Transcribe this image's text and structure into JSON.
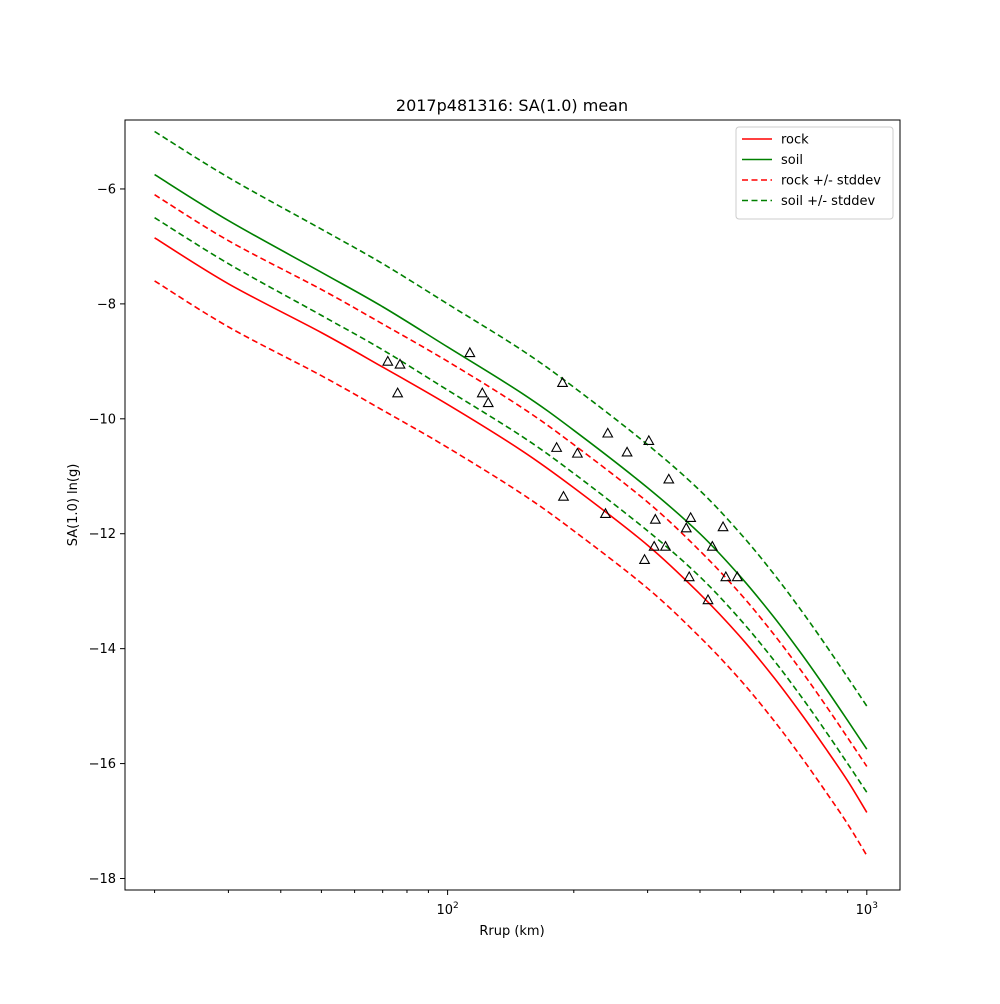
{
  "chart_data": {
    "type": "line",
    "title": "2017p481316: SA(1.0) mean",
    "xlabel": "Rrup (km)",
    "ylabel": "SA(1.0) ln(g)",
    "xscale": "log",
    "xlim": [
      17,
      1200
    ],
    "ylim": [
      -18.2,
      -4.8
    ],
    "x_major_ticks": [
      100,
      1000
    ],
    "x_major_tick_labels": [
      "10",
      "10"
    ],
    "x_major_tick_exponents": [
      "2",
      "3"
    ],
    "y_ticks": [
      -18,
      -16,
      -14,
      -12,
      -10,
      -8,
      -6
    ],
    "y_tick_labels": [
      "−18",
      "−16",
      "−14",
      "−12",
      "−10",
      "−8",
      "−6"
    ],
    "grid": false,
    "legend_position": "top-right",
    "x": [
      20,
      30,
      50,
      70,
      100,
      150,
      200,
      300,
      400,
      500,
      600,
      700,
      800,
      900,
      1000
    ],
    "series": [
      {
        "name": "rock",
        "color": "#ff0000",
        "dash": "solid",
        "values": [
          -6.85,
          -7.65,
          -8.5,
          -9.1,
          -9.75,
          -10.55,
          -11.2,
          -12.2,
          -13.05,
          -13.8,
          -14.5,
          -15.15,
          -15.75,
          -16.3,
          -16.85
        ]
      },
      {
        "name": "soil",
        "color": "#008000",
        "dash": "solid",
        "values": [
          -5.75,
          -6.55,
          -7.45,
          -8.05,
          -8.75,
          -9.55,
          -10.2,
          -11.2,
          -12.0,
          -12.75,
          -13.45,
          -14.1,
          -14.7,
          -15.25,
          -15.75
        ]
      },
      {
        "name": "rock +/- stddev",
        "color": "#ff0000",
        "dash": "dashed",
        "values": [
          -6.1,
          -6.9,
          -7.75,
          -8.35,
          -9.0,
          -9.8,
          -10.45,
          -11.45,
          -12.3,
          -13.05,
          -13.75,
          -14.4,
          -15.0,
          -15.55,
          -16.05
        ]
      },
      {
        "name": "",
        "color": "#ff0000",
        "dash": "dashed",
        "values": [
          -7.6,
          -8.4,
          -9.25,
          -9.85,
          -10.5,
          -11.3,
          -11.95,
          -12.95,
          -13.8,
          -14.55,
          -15.25,
          -15.9,
          -16.5,
          -17.05,
          -17.6
        ]
      },
      {
        "name": "soil +/- stddev",
        "color": "#008000",
        "dash": "dashed",
        "values": [
          -6.5,
          -7.3,
          -8.2,
          -8.8,
          -9.5,
          -10.3,
          -10.95,
          -11.95,
          -12.75,
          -13.5,
          -14.2,
          -14.85,
          -15.45,
          -16.0,
          -16.5
        ]
      },
      {
        "name": "",
        "color": "#008000",
        "dash": "dashed",
        "values": [
          -5.0,
          -5.8,
          -6.7,
          -7.3,
          -8.0,
          -8.8,
          -9.45,
          -10.45,
          -11.25,
          -12.0,
          -12.7,
          -13.35,
          -13.95,
          -14.5,
          -15.0
        ]
      }
    ],
    "observations": {
      "marker": "triangle",
      "color": "#000000",
      "points": [
        {
          "x": 72,
          "y": -9.0
        },
        {
          "x": 77,
          "y": -9.05
        },
        {
          "x": 76,
          "y": -9.55
        },
        {
          "x": 113,
          "y": -8.85
        },
        {
          "x": 121,
          "y": -9.55
        },
        {
          "x": 125,
          "y": -9.72
        },
        {
          "x": 182,
          "y": -10.5
        },
        {
          "x": 188,
          "y": -9.37
        },
        {
          "x": 189,
          "y": -11.35
        },
        {
          "x": 204,
          "y": -10.6
        },
        {
          "x": 238,
          "y": -11.65
        },
        {
          "x": 241,
          "y": -10.25
        },
        {
          "x": 268,
          "y": -10.58
        },
        {
          "x": 295,
          "y": -12.45
        },
        {
          "x": 302,
          "y": -10.38
        },
        {
          "x": 311,
          "y": -12.22
        },
        {
          "x": 313,
          "y": -11.75
        },
        {
          "x": 331,
          "y": -12.22
        },
        {
          "x": 337,
          "y": -11.05
        },
        {
          "x": 371,
          "y": -11.9
        },
        {
          "x": 377,
          "y": -12.75
        },
        {
          "x": 380,
          "y": -11.72
        },
        {
          "x": 418,
          "y": -13.15
        },
        {
          "x": 428,
          "y": -12.22
        },
        {
          "x": 454,
          "y": -11.88
        },
        {
          "x": 461,
          "y": -12.75
        },
        {
          "x": 491,
          "y": -12.75
        }
      ]
    }
  }
}
